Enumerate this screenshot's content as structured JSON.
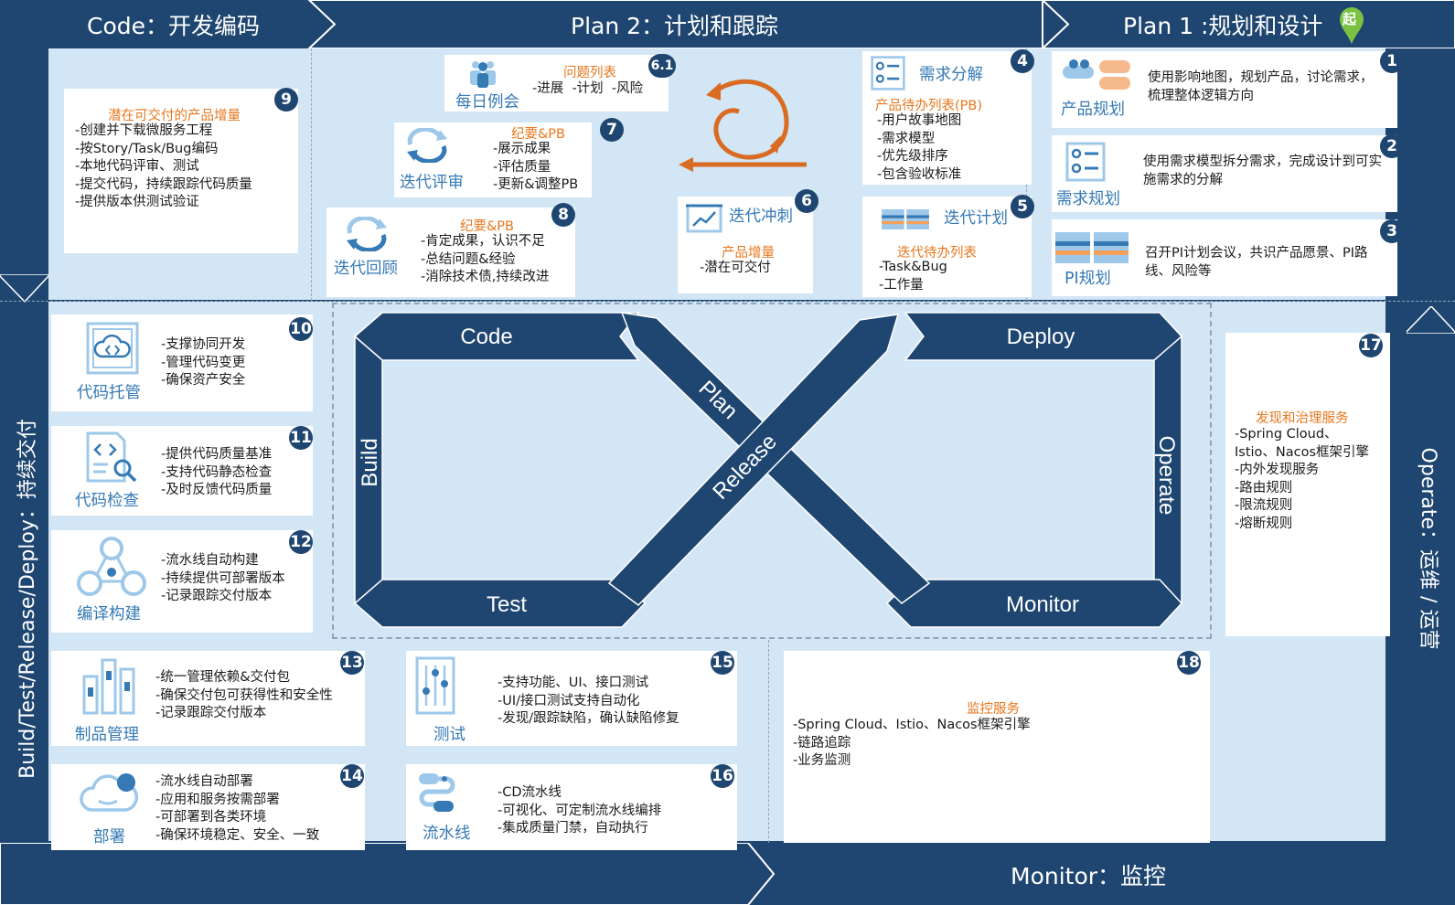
{
  "headers": {
    "code": "Code：开发编码",
    "plan2": "Plan 2：计划和跟踪",
    "plan1": "Plan 1 :规划和设计",
    "start_marker": "起",
    "left": "Build/Test/Release/Deploy：持续交付",
    "right": "Operate：运维 / 运营",
    "monitor": "Monitor：监控"
  },
  "loop": {
    "code": "Code",
    "deploy": "Deploy",
    "build": "Build",
    "test": "Test",
    "plan": "Plan",
    "release": "Release",
    "operate": "Operate",
    "monitor": "Monitor"
  },
  "cards": {
    "c1": {
      "num": "1",
      "name": "产品规划",
      "desc": "使用影响地图，规划产品，讨论需求，梳理整体逻辑方向"
    },
    "c2": {
      "num": "2",
      "name": "需求规划",
      "desc": "使用需求模型拆分需求，完成设计到可实施需求的分解"
    },
    "c3": {
      "num": "3",
      "name": "PI规划",
      "desc": "召开PI计划会议，共识产品愿景、PI路线、风险等"
    },
    "c4": {
      "num": "4",
      "name": "需求分解",
      "title": "产品待办列表(PB)",
      "lines": [
        "-用户故事地图",
        "-需求模型",
        "-优先级排序",
        "-包含验收标准"
      ]
    },
    "c5": {
      "num": "5",
      "name": "迭代计划",
      "title": "迭代待办列表",
      "lines": [
        "-Task&Bug",
        "-工作量"
      ]
    },
    "c6": {
      "num": "6",
      "name": "迭代冲刺",
      "title": "产品增量",
      "lines": [
        "-潜在可交付"
      ]
    },
    "c61": {
      "num": "6.1",
      "name": "每日例会",
      "title": "问题列表",
      "lines": [
        "-进展  -计划  -风险"
      ]
    },
    "c7": {
      "num": "7",
      "name": "迭代评审",
      "title": "纪要&PB",
      "lines": [
        "-展示成果",
        "-评估质量",
        "-更新&调整PB"
      ]
    },
    "c8": {
      "num": "8",
      "name": "迭代回顾",
      "title": "纪要&PB",
      "lines": [
        "-肯定成果，认识不足",
        "-总结问题&经验",
        "-消除技术债,持续改进"
      ]
    },
    "c9": {
      "num": "9",
      "title": "潜在可交付的产品增量",
      "lines": [
        "-创建并下载微服务工程",
        "-按Story/Task/Bug编码",
        "-本地代码评审、测试",
        "-提交代码，持续跟踪代码质量",
        "-提供版本供测试验证"
      ]
    },
    "c10": {
      "num": "10",
      "name": "代码托管",
      "lines": [
        "-支撑协同开发",
        "-管理代码变更",
        "-确保资产安全"
      ]
    },
    "c11": {
      "num": "11",
      "name": "代码检查",
      "lines": [
        "-提供代码质量基准",
        "-支持代码静态检查",
        "-及时反馈代码质量"
      ]
    },
    "c12": {
      "num": "12",
      "name": "编译构建",
      "lines": [
        "-流水线自动构建",
        "-持续提供可部署版本",
        "-记录跟踪交付版本"
      ]
    },
    "c13": {
      "num": "13",
      "name": "制品管理",
      "lines": [
        "-统一管理依赖&交付包",
        "-确保交付包可获得性和安全性",
        "-记录跟踪交付版本"
      ]
    },
    "c14": {
      "num": "14",
      "name": "部署",
      "lines": [
        "-流水线自动部署",
        "-应用和服务按需部署",
        "-可部署到各类环境",
        "-确保环境稳定、安全、一致"
      ]
    },
    "c15": {
      "num": "15",
      "name": "测试",
      "lines": [
        "-支持功能、UI、接口测试",
        "-UI/接口测试支持自动化",
        "-发现/跟踪缺陷，确认缺陷修复"
      ]
    },
    "c16": {
      "num": "16",
      "name": "流水线",
      "lines": [
        "-CD流水线",
        "-可视化、可定制流水线编排",
        "-集成质量门禁，自动执行"
      ]
    },
    "c17": {
      "num": "17",
      "title": "发现和治理服务",
      "lines": [
        "-Spring Cloud、",
        "Istio、Nacos框架引擎",
        "-内外发现服务",
        "-路由规则",
        "-限流规则",
        "-熔断规则"
      ]
    },
    "c18": {
      "num": "18",
      "title": "监控服务",
      "lines": [
        "-Spring Cloud、Istio、Nacos框架引擎",
        "-链路追踪",
        "-业务监测"
      ]
    }
  },
  "colors": {
    "navy": "#1f4670",
    "light_blue": "#d3e6f5",
    "orange": "#e8771d",
    "icon_blue": "#3579b5",
    "start_green": "#7cc242"
  },
  "icons": {
    "c1": "group-people-icon",
    "c2": "checklist-icon",
    "c3": "kanban-board-icon",
    "c4": "checklist-icon",
    "c5": "kanban-board-icon",
    "c6": "presentation-chart-icon",
    "c61": "team-meeting-icon",
    "c7": "cycle-arrows-icon",
    "c8": "cycle-arrows-icon",
    "c10": "code-cloud-icon",
    "c11": "code-inspect-icon",
    "c12": "build-nodes-icon",
    "c13": "artifact-bars-icon",
    "c14": "deploy-cloud-icon",
    "c15": "test-sliders-icon",
    "c16": "pipeline-icon",
    "sprint": "sprint-loop-icon"
  }
}
